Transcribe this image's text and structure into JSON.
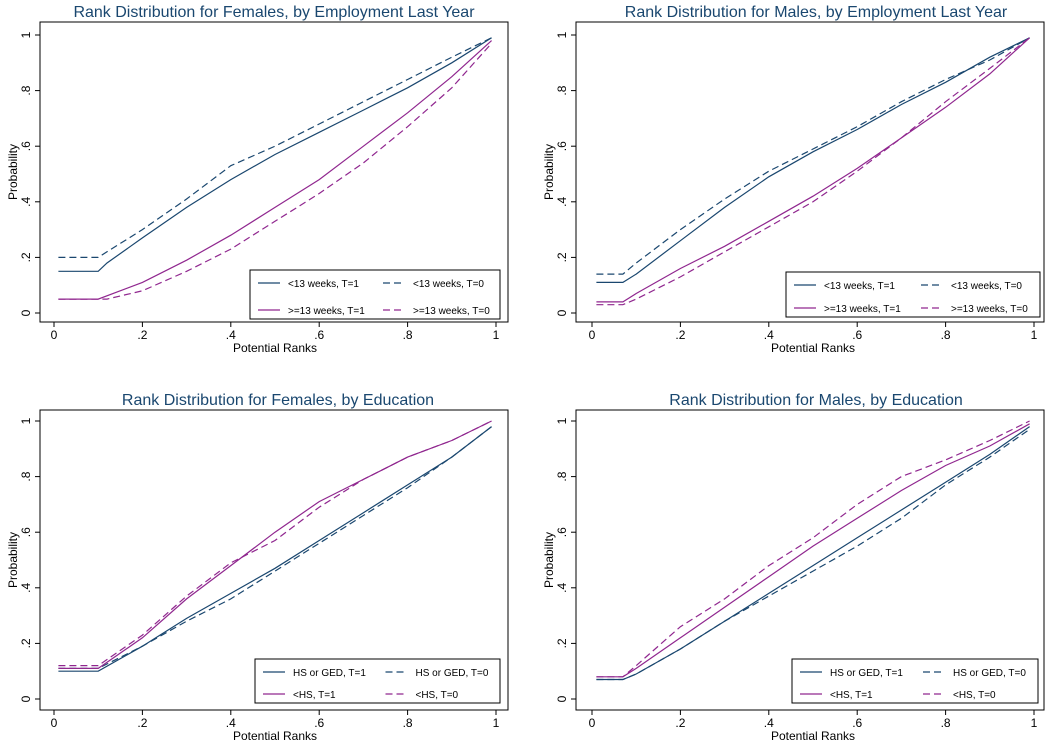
{
  "chart_data": [
    {
      "type": "line",
      "title": "Rank Distribution for Females, by Employment Last Year",
      "xlabel": "Potential Ranks",
      "ylabel": "Probability",
      "xlim": [
        0,
        1
      ],
      "ylim": [
        0,
        1
      ],
      "xticks": [
        "0",
        ".2",
        ".4",
        ".6",
        ".8",
        "1"
      ],
      "yticks": [
        "0",
        ".2",
        ".4",
        ".6",
        ".8",
        "1"
      ],
      "legend_position": "bottom-right",
      "series": [
        {
          "name": "<13 weeks, T=1",
          "color": "#1a476f",
          "dash": "solid",
          "x": [
            0.01,
            0.1,
            0.12,
            0.2,
            0.3,
            0.4,
            0.5,
            0.6,
            0.7,
            0.8,
            0.9,
            0.99
          ],
          "y": [
            0.15,
            0.15,
            0.18,
            0.27,
            0.38,
            0.48,
            0.57,
            0.65,
            0.73,
            0.81,
            0.9,
            0.99
          ]
        },
        {
          "name": "<13 weeks, T=0",
          "color": "#1a476f",
          "dash": "dash",
          "x": [
            0.01,
            0.1,
            0.12,
            0.2,
            0.3,
            0.4,
            0.5,
            0.6,
            0.7,
            0.8,
            0.9,
            0.99
          ],
          "y": [
            0.2,
            0.2,
            0.22,
            0.3,
            0.41,
            0.53,
            0.6,
            0.68,
            0.76,
            0.84,
            0.92,
            0.99
          ]
        },
        {
          "name": ">=13 weeks, T=1",
          "color": "#90278f",
          "dash": "solid",
          "x": [
            0.01,
            0.1,
            0.2,
            0.3,
            0.4,
            0.5,
            0.6,
            0.7,
            0.8,
            0.9,
            0.99
          ],
          "y": [
            0.05,
            0.05,
            0.11,
            0.19,
            0.28,
            0.38,
            0.48,
            0.6,
            0.72,
            0.85,
            0.98
          ]
        },
        {
          "name": ">=13 weeks, T=0",
          "color": "#90278f",
          "dash": "dash",
          "x": [
            0.01,
            0.12,
            0.2,
            0.3,
            0.4,
            0.5,
            0.6,
            0.7,
            0.8,
            0.9,
            0.99
          ],
          "y": [
            0.05,
            0.05,
            0.08,
            0.15,
            0.23,
            0.33,
            0.43,
            0.54,
            0.67,
            0.81,
            0.97
          ]
        }
      ]
    },
    {
      "type": "line",
      "title": "Rank Distribution for Males, by Employment Last Year",
      "xlabel": "Potential Ranks",
      "ylabel": "Probability",
      "xlim": [
        0,
        1
      ],
      "ylim": [
        0,
        1
      ],
      "xticks": [
        "0",
        ".2",
        ".4",
        ".6",
        ".8",
        "1"
      ],
      "yticks": [
        "0",
        ".2",
        ".4",
        ".6",
        ".8",
        "1"
      ],
      "legend_position": "bottom-right",
      "series": [
        {
          "name": "<13 weeks, T=1",
          "color": "#1a476f",
          "dash": "solid",
          "x": [
            0.01,
            0.07,
            0.1,
            0.2,
            0.3,
            0.4,
            0.5,
            0.6,
            0.7,
            0.8,
            0.9,
            0.99
          ],
          "y": [
            0.11,
            0.11,
            0.14,
            0.26,
            0.38,
            0.49,
            0.58,
            0.66,
            0.75,
            0.83,
            0.92,
            0.99
          ]
        },
        {
          "name": "<13 weeks, T=0",
          "color": "#1a476f",
          "dash": "dash",
          "x": [
            0.01,
            0.07,
            0.1,
            0.2,
            0.3,
            0.4,
            0.5,
            0.6,
            0.7,
            0.8,
            0.9,
            0.99
          ],
          "y": [
            0.14,
            0.14,
            0.18,
            0.3,
            0.41,
            0.51,
            0.59,
            0.67,
            0.76,
            0.84,
            0.91,
            0.99
          ]
        },
        {
          "name": ">=13 weeks, T=1",
          "color": "#90278f",
          "dash": "solid",
          "x": [
            0.01,
            0.07,
            0.1,
            0.2,
            0.3,
            0.4,
            0.5,
            0.6,
            0.7,
            0.8,
            0.9,
            0.99
          ],
          "y": [
            0.04,
            0.04,
            0.07,
            0.16,
            0.24,
            0.33,
            0.42,
            0.52,
            0.63,
            0.74,
            0.86,
            0.99
          ]
        },
        {
          "name": ">=13 weeks, T=0",
          "color": "#90278f",
          "dash": "dash",
          "x": [
            0.01,
            0.07,
            0.1,
            0.2,
            0.3,
            0.4,
            0.5,
            0.6,
            0.7,
            0.8,
            0.9,
            0.99
          ],
          "y": [
            0.03,
            0.03,
            0.05,
            0.13,
            0.22,
            0.31,
            0.4,
            0.51,
            0.63,
            0.76,
            0.88,
            0.99
          ]
        }
      ]
    },
    {
      "type": "line",
      "title": "Rank Distribution for Females, by Education",
      "xlabel": "Potential Ranks",
      "ylabel": "Probability",
      "xlim": [
        0,
        1
      ],
      "ylim": [
        0,
        1
      ],
      "xticks": [
        "0",
        ".2",
        ".4",
        ".6",
        ".8",
        "1"
      ],
      "yticks": [
        "0",
        ".2",
        ".4",
        ".6",
        ".8",
        "1"
      ],
      "legend_position": "bottom-right",
      "series": [
        {
          "name": "HS or GED, T=1",
          "color": "#1a476f",
          "dash": "solid",
          "x": [
            0.01,
            0.1,
            0.2,
            0.3,
            0.4,
            0.5,
            0.6,
            0.7,
            0.8,
            0.9,
            0.99
          ],
          "y": [
            0.1,
            0.1,
            0.19,
            0.29,
            0.38,
            0.47,
            0.57,
            0.67,
            0.77,
            0.87,
            0.98
          ]
        },
        {
          "name": "HS or GED, T=0",
          "color": "#1a476f",
          "dash": "dash",
          "x": [
            0.01,
            0.1,
            0.2,
            0.3,
            0.4,
            0.5,
            0.6,
            0.7,
            0.8,
            0.9,
            0.99
          ],
          "y": [
            0.11,
            0.11,
            0.19,
            0.28,
            0.36,
            0.46,
            0.56,
            0.66,
            0.76,
            0.87,
            0.98
          ]
        },
        {
          "name": "<HS, T=1",
          "color": "#90278f",
          "dash": "solid",
          "x": [
            0.01,
            0.1,
            0.2,
            0.3,
            0.4,
            0.5,
            0.6,
            0.7,
            0.8,
            0.9,
            0.99
          ],
          "y": [
            0.11,
            0.11,
            0.22,
            0.36,
            0.48,
            0.6,
            0.71,
            0.79,
            0.87,
            0.93,
            1.0
          ]
        },
        {
          "name": "<HS, T=0",
          "color": "#90278f",
          "dash": "dash",
          "x": [
            0.01,
            0.1,
            0.2,
            0.3,
            0.4,
            0.5,
            0.6,
            0.7,
            0.8,
            0.9,
            0.99
          ],
          "y": [
            0.12,
            0.12,
            0.23,
            0.37,
            0.49,
            0.57,
            0.69,
            0.79,
            0.87,
            0.93,
            1.0
          ]
        }
      ]
    },
    {
      "type": "line",
      "title": "Rank Distribution for Males, by Education",
      "xlabel": "Potential Ranks",
      "ylabel": "Probability",
      "xlim": [
        0,
        1
      ],
      "ylim": [
        0,
        1
      ],
      "xticks": [
        "0",
        ".2",
        ".4",
        ".6",
        ".8",
        "1"
      ],
      "yticks": [
        "0",
        ".2",
        ".4",
        ".6",
        ".8",
        "1"
      ],
      "legend_position": "bottom-right",
      "series": [
        {
          "name": "HS or GED, T=1",
          "color": "#1a476f",
          "dash": "solid",
          "x": [
            0.01,
            0.07,
            0.1,
            0.2,
            0.3,
            0.4,
            0.5,
            0.6,
            0.7,
            0.8,
            0.9,
            0.99
          ],
          "y": [
            0.07,
            0.07,
            0.09,
            0.18,
            0.28,
            0.38,
            0.48,
            0.58,
            0.68,
            0.78,
            0.88,
            0.98
          ]
        },
        {
          "name": "HS or GED, T=0",
          "color": "#1a476f",
          "dash": "dash",
          "x": [
            0.01,
            0.07,
            0.1,
            0.2,
            0.3,
            0.4,
            0.5,
            0.6,
            0.7,
            0.8,
            0.9,
            0.99
          ],
          "y": [
            0.07,
            0.07,
            0.09,
            0.18,
            0.28,
            0.37,
            0.46,
            0.55,
            0.65,
            0.77,
            0.87,
            0.97
          ]
        },
        {
          "name": "<HS, T=1",
          "color": "#90278f",
          "dash": "solid",
          "x": [
            0.01,
            0.07,
            0.1,
            0.2,
            0.3,
            0.4,
            0.5,
            0.6,
            0.7,
            0.8,
            0.9,
            0.99
          ],
          "y": [
            0.08,
            0.08,
            0.11,
            0.22,
            0.33,
            0.44,
            0.55,
            0.65,
            0.75,
            0.84,
            0.91,
            0.99
          ]
        },
        {
          "name": "<HS, T=0",
          "color": "#90278f",
          "dash": "dash",
          "x": [
            0.01,
            0.07,
            0.1,
            0.2,
            0.3,
            0.4,
            0.5,
            0.6,
            0.7,
            0.8,
            0.9,
            0.99
          ],
          "y": [
            0.08,
            0.08,
            0.12,
            0.26,
            0.36,
            0.48,
            0.58,
            0.7,
            0.8,
            0.86,
            0.93,
            1.0
          ]
        }
      ]
    }
  ]
}
